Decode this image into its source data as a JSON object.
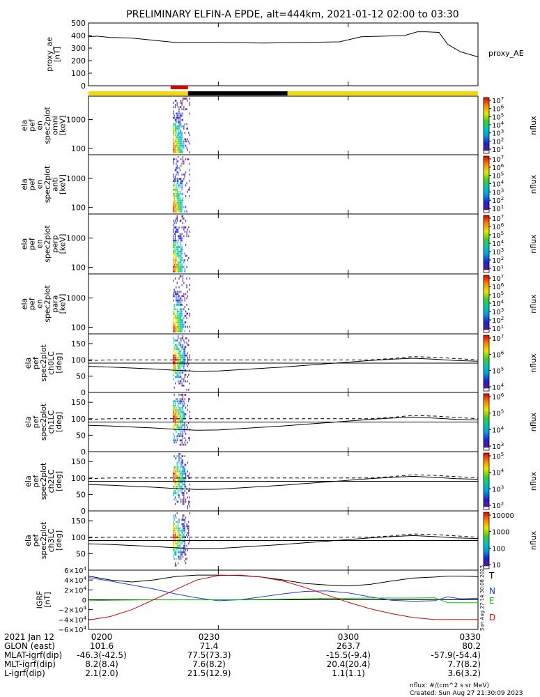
{
  "title": "PRELIMINARY ELFIN-A EPDE, alt=444km, 2021-01-12 02:00 to 03:30",
  "colors": {
    "black": "#000000",
    "yellow": "#f5d800",
    "red": "#e00000",
    "blue": "#1a3fd6",
    "green": "#00c800",
    "dred": "#d40000"
  },
  "chart_data": [
    {
      "id": "proxy_ae",
      "type": "line",
      "ylabel": "proxy_ae\n[nT]",
      "right_label": "proxy_AE",
      "ylim": [
        0,
        500
      ],
      "yticks": [
        "500",
        "400",
        "300",
        "200",
        "100",
        "0"
      ],
      "x_minutes": [
        0,
        2,
        5,
        10,
        20,
        30,
        40,
        50,
        58,
        63,
        68,
        73,
        76,
        78,
        81,
        83,
        86,
        90
      ],
      "values": [
        390,
        395,
        385,
        380,
        345,
        345,
        340,
        345,
        350,
        390,
        395,
        400,
        430,
        430,
        425,
        330,
        270,
        230
      ]
    },
    {
      "id": "status_bars",
      "type": "table",
      "top_bar_start_min": 19,
      "top_bar_end_min": 23,
      "mid_segments": [
        {
          "start": 0,
          "end": 23,
          "state": "yellow"
        },
        {
          "start": 23,
          "end": 46,
          "state": "black"
        },
        {
          "start": 46,
          "end": 90,
          "state": "yellow"
        }
      ]
    },
    {
      "id": "spec_omni",
      "type": "heatmap",
      "ylabel": "ela\npef\nen\nspec2plot\nomni\n[keV]",
      "yticks": [
        "1000",
        "100"
      ],
      "zlabel": "nflux",
      "zticks": [
        "10^7",
        "10^6",
        "10^5",
        "10^4",
        "10^3",
        "10^2",
        "10^1"
      ],
      "burst_start_min": 19.5,
      "burst_end_min": 23.5
    },
    {
      "id": "spec_anti",
      "type": "heatmap",
      "ylabel": "ela\npef\nen\nspec2plot\nanti\n[keV]",
      "yticks": [
        "1000",
        "100"
      ],
      "zlabel": "nflux",
      "zticks": [
        "10^7",
        "10^6",
        "10^5",
        "10^4",
        "10^3",
        "10^2",
        "10^1"
      ],
      "burst_start_min": 19.5,
      "burst_end_min": 23.5
    },
    {
      "id": "spec_perp",
      "type": "heatmap",
      "ylabel": "ela\npef\nen\nspec2plot\nperp\n[keV]",
      "yticks": [
        "1000",
        "100"
      ],
      "zlabel": "nflux",
      "zticks": [
        "10^7",
        "10^6",
        "10^5",
        "10^4",
        "10^3",
        "10^2",
        "10^1"
      ],
      "burst_start_min": 19.5,
      "burst_end_min": 23.5
    },
    {
      "id": "spec_para",
      "type": "heatmap",
      "ylabel": "ela\npef\nen\nspec2plot\npara\n[keV]",
      "yticks": [
        "1000",
        "100"
      ],
      "zlabel": "nflux",
      "zticks": [
        "10^7",
        "10^6",
        "10^5",
        "10^4",
        "10^3",
        "10^2",
        "10^1"
      ],
      "burst_start_min": 19.5,
      "burst_end_min": 23.5
    },
    {
      "id": "spec_ch0",
      "type": "heatmap",
      "ylabel": "ela\npef\nspec2plot\nch0LC\n[deg]",
      "ylim": [
        0,
        180
      ],
      "yticks": [
        "150",
        "100",
        "50",
        "0"
      ],
      "zlabel": "nflux",
      "zticks": [
        "10^7",
        "10^6",
        "10^5",
        "10^4"
      ],
      "burst_start_min": 19.5,
      "burst_end_min": 23.5
    },
    {
      "id": "spec_ch1",
      "type": "heatmap",
      "ylabel": "ela\npef\nspec2plot\nch1LC\n[deg]",
      "ylim": [
        0,
        180
      ],
      "yticks": [
        "150",
        "100",
        "50",
        "0"
      ],
      "zlabel": "nflux",
      "zticks": [
        "10^6",
        "10^5",
        "10^4",
        "10^3"
      ],
      "burst_start_min": 19.5,
      "burst_end_min": 23.5
    },
    {
      "id": "spec_ch2",
      "type": "heatmap",
      "ylabel": "ela\npef\nspec2plot\nch2LC\n[deg]",
      "ylim": [
        0,
        180
      ],
      "yticks": [
        "150",
        "100",
        "50",
        "0"
      ],
      "zlabel": "nflux",
      "zticks": [
        "10^5",
        "10^4",
        "10^3",
        "10^2"
      ],
      "burst_start_min": 19.5,
      "burst_end_min": 23.5
    },
    {
      "id": "spec_ch3",
      "type": "heatmap",
      "ylabel": "ela\npef\nspec2plot\nch3LC\n[deg]",
      "ylim": [
        0,
        180
      ],
      "yticks": [
        "150",
        "100",
        "50"
      ],
      "zlabel": "nflux",
      "zticks": [
        "10000",
        "1000",
        "100",
        "10"
      ],
      "burst_start_min": 19.5,
      "burst_end_min": 23.5
    },
    {
      "id": "igrf",
      "type": "line",
      "ylabel": "IGRF\n[nT]",
      "ylim": [
        -60000,
        60000
      ],
      "yticks": [
        "6×10^4",
        "4×10^4",
        "2×10^4",
        "0",
        "−2×10^4",
        "−4×10^4",
        "−6×10^4"
      ],
      "legend": [
        "T",
        "N",
        "E",
        "D"
      ]
    }
  ],
  "lc_lines": {
    "x_minutes": [
      0,
      5,
      10,
      15,
      20,
      25,
      30,
      35,
      40,
      45,
      50,
      55,
      60,
      65,
      70,
      75,
      80,
      85,
      90
    ],
    "solid_deg": [
      80,
      78,
      75,
      72,
      68,
      65,
      66,
      70,
      74,
      78,
      83,
      88,
      93,
      98,
      102,
      105,
      102,
      98,
      96
    ],
    "dashed_deg": [
      98,
      100,
      100,
      100,
      100,
      100,
      100,
      100,
      100,
      100,
      100,
      100,
      100,
      100,
      104,
      110,
      108,
      104,
      100
    ]
  },
  "igrf_series": {
    "x_minutes": [
      0,
      5,
      10,
      15,
      20,
      25,
      30,
      35,
      40,
      45,
      50,
      55,
      60,
      65,
      70,
      75,
      80,
      83,
      86,
      90
    ],
    "T": [
      48000,
      40000,
      36000,
      40000,
      47000,
      50000,
      50000,
      49000,
      46000,
      40000,
      33000,
      30000,
      28000,
      31000,
      38000,
      44000,
      46000,
      48000,
      48000,
      47000
    ],
    "N": [
      45000,
      38000,
      30000,
      22000,
      12000,
      4000,
      -2000,
      0,
      6000,
      12000,
      17000,
      18000,
      14000,
      6000,
      -1000,
      -3000,
      -2000,
      6000,
      2000,
      3000
    ],
    "E": [
      -2000,
      -1000,
      -500,
      0,
      0,
      0,
      200,
      200,
      500,
      1000,
      2000,
      3000,
      3000,
      3500,
      3500,
      3500,
      4000,
      -6000,
      -6000,
      -6000
    ],
    "D": [
      -41000,
      -34000,
      -20000,
      0,
      20000,
      40000,
      49000,
      50000,
      46000,
      38000,
      25000,
      10000,
      -5000,
      -18000,
      -28000,
      -36000,
      -40000,
      -40000,
      -40000,
      -40000
    ]
  },
  "x_axis": {
    "tick_labels": [
      "0200",
      "0230",
      "0300",
      "0330"
    ],
    "tick_minutes": [
      0,
      30,
      60,
      90
    ],
    "rows": [
      {
        "label": "2021 Jan 12",
        "vals": [
          "0200",
          "0230",
          "0300",
          "0330"
        ]
      },
      {
        "label": "GLON (east)",
        "vals": [
          "101.6",
          "71.4",
          "263.7",
          "80.2"
        ]
      },
      {
        "label": "MLAT-igrf(dip)",
        "vals": [
          "-46.3(-42.5)",
          "77.5(73.3)",
          "-15.5(-9.4)",
          "-57.9(-54.4)"
        ]
      },
      {
        "label": "MLT-igrf(dip)",
        "vals": [
          "8.2(8.4)",
          "7.6(8.2)",
          "20.4(20.4)",
          "7.7(8.2)"
        ]
      },
      {
        "label": "L-igrf(dip)",
        "vals": [
          "2.1(2.0)",
          "21.5(12.9)",
          "1.1(1.1)",
          "3.6(3.2)"
        ]
      }
    ]
  },
  "footer": {
    "units": "nflux: #/(cm^2 s sr MeV)",
    "created": "Created: Sun Aug 27 21:30:09 2023",
    "side_stamp": "Sun Aug 27 14:30:08 2023"
  }
}
